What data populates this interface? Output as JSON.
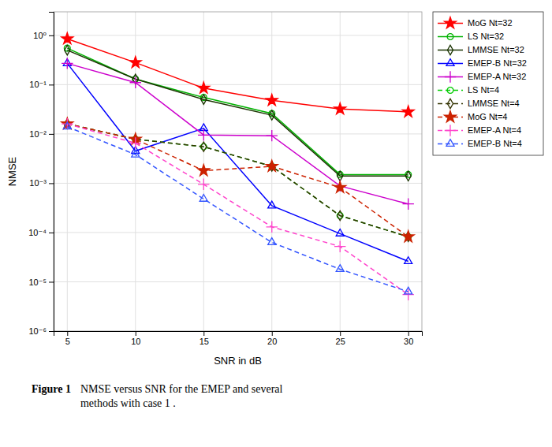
{
  "chart_data": {
    "type": "line",
    "x_label": "SNR in dB",
    "y_label": "NMSE",
    "annotations": [
      "Figure 1",
      "NMSE versus SNR for the EMEP and several\nmethods with case 1 ."
    ],
    "x": [
      5,
      10,
      15,
      20,
      25,
      30
    ],
    "xlim": [
      4,
      31
    ],
    "xticks": [
      5,
      10,
      15,
      20,
      25,
      30
    ],
    "ylim": [
      1e-06,
      3.0
    ],
    "yticks": [
      {
        "value": 1e-06,
        "label": "10⁻⁶"
      },
      {
        "value": 1e-05,
        "label": "10⁻⁵"
      },
      {
        "value": 0.0001,
        "label": "10⁻⁴"
      },
      {
        "value": 0.001,
        "label": "10⁻³"
      },
      {
        "value": 0.01,
        "label": "10⁻²"
      },
      {
        "value": 0.1,
        "label": "10⁻¹"
      },
      {
        "value": 1,
        "label": "10⁰"
      }
    ],
    "log": "y",
    "grid": true,
    "legend": "upper right",
    "series": [
      {
        "name": "MoG Nt=32",
        "color": "red",
        "marker": "star",
        "line_style": "solid",
        "values": [
          0.85,
          0.28,
          0.085,
          0.048,
          0.032,
          0.028
        ]
      },
      {
        "name": "LS Nt=32",
        "color": "#00b300",
        "marker": "circle-open",
        "line_style": "solid",
        "values": [
          0.55,
          0.13,
          0.055,
          0.026,
          0.0015,
          0.0015
        ]
      },
      {
        "name": "LMMSE Nt=32",
        "color": "#1a3300",
        "marker": "diamond-open",
        "line_style": "solid",
        "values": [
          0.5,
          0.13,
          0.05,
          0.024,
          0.0014,
          0.0014
        ]
      },
      {
        "name": "EMEP-B Nt=32",
        "color": "blue",
        "marker": "triangle-open",
        "line_style": "solid",
        "values": [
          0.27,
          0.0045,
          0.013,
          0.00035,
          9.5e-05,
          2.6e-05
        ]
      },
      {
        "name": "EMEP-A Nt=32",
        "color": "#cc00cc",
        "marker": "plus",
        "line_style": "solid",
        "values": [
          0.27,
          0.11,
          0.0095,
          0.0092,
          0.00088,
          0.00038
        ]
      },
      {
        "name": "LS Nt=4",
        "color": "#00cc00",
        "marker": "circle-open",
        "line_style": "dashed",
        "values": [
          0.016,
          0.0078,
          0.0055,
          0.0022,
          0.00022,
          8.2e-05
        ]
      },
      {
        "name": "LMMSE Nt=4",
        "color": "#333300",
        "marker": "diamond-open",
        "line_style": "dashed",
        "values": [
          0.016,
          0.0078,
          0.0055,
          0.0022,
          0.00022,
          8.2e-05
        ]
      },
      {
        "name": "MoG Nt=4",
        "color": "#cc2200",
        "marker": "star",
        "line_style": "dashed",
        "values": [
          0.016,
          0.0078,
          0.0018,
          0.0022,
          0.00082,
          8.2e-05
        ]
      },
      {
        "name": "EMEP-A Nt=4",
        "color": "#ff44cc",
        "marker": "plus",
        "line_style": "dashed",
        "values": [
          0.016,
          0.0065,
          0.00095,
          0.00013,
          5.2e-05,
          5.5e-06
        ]
      },
      {
        "name": "EMEP-B Nt=4",
        "color": "#3355ff",
        "marker": "triangle-open",
        "line_style": "dashed",
        "values": [
          0.014,
          0.0038,
          0.00048,
          6.3e-05,
          1.8e-05,
          6.3e-06
        ]
      }
    ]
  }
}
